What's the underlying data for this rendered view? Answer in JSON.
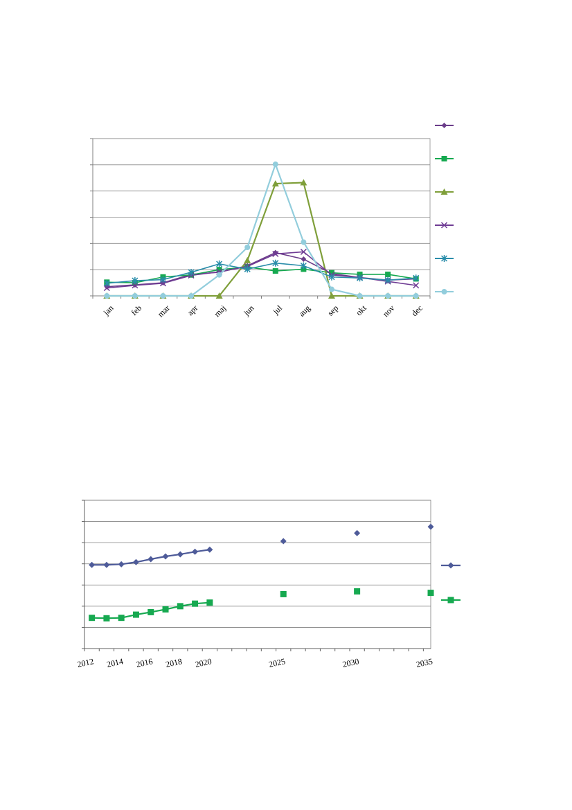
{
  "chart_data": [
    {
      "type": "line",
      "categories": [
        "jan",
        "feb",
        "mar",
        "apr",
        "maj",
        "jun",
        "jul",
        "aug",
        "sep",
        "okt",
        "nov",
        "dec"
      ],
      "ylim": [
        0,
        6
      ],
      "grid": true,
      "legend": "right",
      "series": [
        {
          "color": "#6B3D8A",
          "marker": "diamond",
          "values": [
            0.35,
            0.42,
            0.5,
            0.82,
            0.9,
            1.15,
            1.65,
            1.4,
            0.85,
            0.7,
            0.6,
            0.65
          ]
        },
        {
          "color": "#16A950",
          "marker": "square",
          "values": [
            0.52,
            0.5,
            0.72,
            0.8,
            1.0,
            1.1,
            0.95,
            1.02,
            0.88,
            0.82,
            0.82,
            0.65
          ]
        },
        {
          "color": "#7F9F3A",
          "marker": "triangle",
          "values": [
            0,
            0,
            0,
            0,
            0,
            1.35,
            4.28,
            4.32,
            0,
            0,
            0,
            0
          ]
        },
        {
          "color": "#6F3C94",
          "marker": "x",
          "values": [
            0.3,
            0.4,
            0.48,
            0.78,
            0.92,
            1.12,
            1.6,
            1.68,
            0.8,
            0.7,
            0.55,
            0.4
          ]
        },
        {
          "color": "#2A8DAA",
          "marker": "asterisk",
          "values": [
            0.48,
            0.58,
            0.62,
            0.9,
            1.22,
            1.02,
            1.25,
            1.15,
            0.72,
            0.68,
            0.6,
            0.68
          ]
        },
        {
          "color": "#92CDDC",
          "marker": "circle",
          "values": [
            0,
            0,
            0,
            0,
            0.8,
            1.85,
            5.02,
            2.05,
            0.25,
            0,
            0,
            0
          ]
        }
      ]
    },
    {
      "type": "line",
      "xlim": [
        2012,
        2035.5
      ],
      "ylim": [
        0,
        7
      ],
      "x_ticks": [
        "2012",
        "2014",
        "2016",
        "2018",
        "2020",
        "2025",
        "2030",
        "2035"
      ],
      "grid": true,
      "legend": "right",
      "series": [
        {
          "color": "#4E5B99",
          "marker": "diamond",
          "x": [
            2012.5,
            2013.5,
            2014.5,
            2015.5,
            2016.5,
            2017.5,
            2018.5,
            2019.5,
            2020.5,
            2025.5,
            2030.5,
            2035.5
          ],
          "y": [
            3.95,
            3.95,
            3.98,
            4.08,
            4.22,
            4.35,
            4.45,
            4.57,
            4.67,
            5.07,
            5.45,
            5.75
          ]
        },
        {
          "color": "#16A950",
          "marker": "square",
          "x": [
            2012.5,
            2013.5,
            2014.5,
            2015.5,
            2016.5,
            2017.5,
            2018.5,
            2019.5,
            2020.5,
            2025.5,
            2030.5,
            2035.5
          ],
          "y": [
            1.45,
            1.43,
            1.45,
            1.6,
            1.72,
            1.85,
            2.0,
            2.12,
            2.17,
            2.57,
            2.7,
            2.63
          ]
        }
      ]
    }
  ]
}
